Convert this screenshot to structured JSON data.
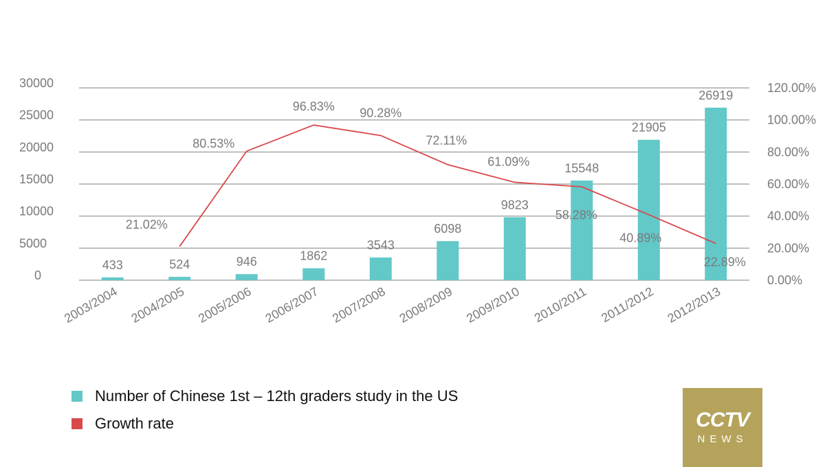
{
  "chart_data": {
    "type": "bar+line",
    "categories": [
      "2003/2004",
      "2004/2005",
      "2005/2006",
      "2006/2007",
      "2007/2008",
      "2008/2009",
      "2009/2010",
      "2010/2011",
      "2011/2012",
      "2012/2013"
    ],
    "series": [
      {
        "name": "Number of Chinese 1st – 12th graders study in the US",
        "type": "bar",
        "axis": "left",
        "color": "#63c8c8",
        "values": [
          433,
          524,
          946,
          1862,
          3543,
          6098,
          9823,
          15548,
          21905,
          26919
        ],
        "labels": [
          "433",
          "524",
          "946",
          "1862",
          "3543",
          "6098",
          "9823",
          "15548",
          "21905",
          "26919"
        ]
      },
      {
        "name": "Growth rate",
        "type": "line",
        "axis": "right",
        "color": "#d9484b",
        "values": [
          null,
          21.02,
          80.53,
          96.83,
          90.28,
          72.11,
          61.09,
          58.28,
          40.89,
          22.89
        ],
        "labels": [
          null,
          "21.02%",
          "80.53%",
          "96.83%",
          "90.28%",
          "72.11%",
          "61.09%",
          "58.28%",
          "40.89%",
          "22.89%"
        ]
      }
    ],
    "left_axis": {
      "ylim": [
        0,
        30000
      ],
      "ticks": [
        "0",
        "5000",
        "10000",
        "15000",
        "20000",
        "25000",
        "30000"
      ]
    },
    "right_axis": {
      "ylim": [
        0,
        120
      ],
      "ticks": [
        "0.00%",
        "20.00%",
        "40.00%",
        "60.00%",
        "80.00%",
        "100.00%",
        "120.00%"
      ]
    },
    "grid": true,
    "legend": "bottom-left"
  },
  "logo": {
    "line1": "CCTV",
    "line2": "NEWS"
  }
}
